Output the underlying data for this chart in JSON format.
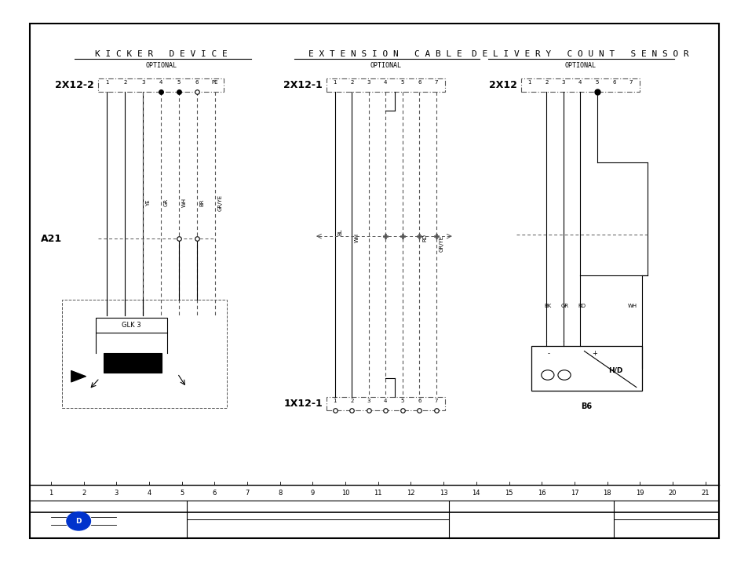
{
  "bg_color": "#ffffff",
  "border_color": "#000000",
  "sections": [
    "KICKER DEVICE",
    "EXTENSION CABLE",
    "DELIVERY COUNT SENSOR"
  ],
  "subtitles": [
    "OPTIONAL",
    "OPTIONAL",
    "OPTIONAL"
  ],
  "wire_labels_kicker": [
    "YE",
    "GR",
    "WH",
    "BR",
    "GR/YE"
  ],
  "wire_labels_ext": [
    "BL",
    "WH",
    "RD",
    "GR/YE"
  ],
  "wire_labels_delivery": [
    "BK",
    "GR",
    "RD",
    "WH"
  ],
  "bottom_numbers": [
    "1",
    "2",
    "3",
    "4",
    "5",
    "6",
    "7",
    "8",
    "9",
    "10",
    "11",
    "12",
    "13",
    "14",
    "15",
    "16",
    "17",
    "18",
    "19",
    "20",
    "21"
  ]
}
